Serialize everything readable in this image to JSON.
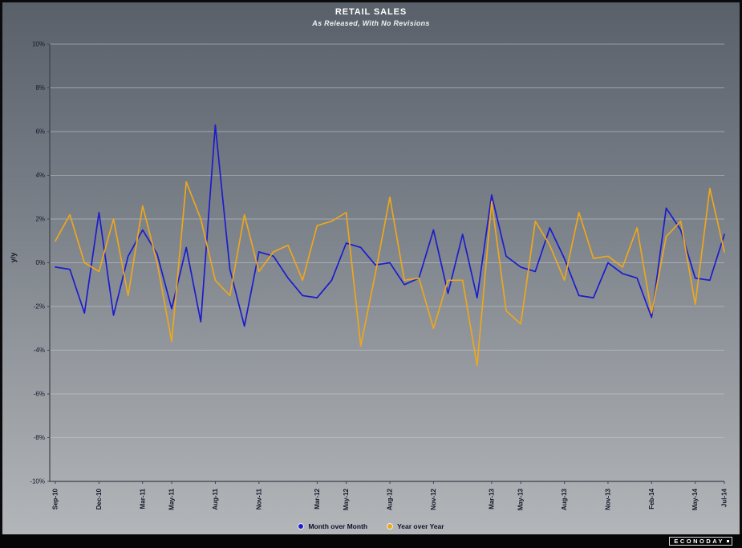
{
  "header": {
    "title": "RETAIL SALES",
    "subtitle": "As Released, With No Revisions"
  },
  "branding": {
    "logo_text": "ECONODAY"
  },
  "chart_data": {
    "type": "line",
    "title": "RETAIL SALES",
    "subtitle": "As Released, With No Revisions",
    "ylabel": "y/y",
    "unit": "%",
    "ylim": [
      -10,
      10
    ],
    "y_tick_step": 2,
    "y_tick_labels": [
      "10%",
      "8%",
      "6%",
      "4%",
      "2%",
      "0%",
      "-2%",
      "-4%",
      "-6%",
      "-8%",
      "-10%"
    ],
    "n_points": 47,
    "x_ticks": [
      {
        "label": "Sep-10",
        "index": 0
      },
      {
        "label": "Dec-10",
        "index": 3
      },
      {
        "label": "Mar-11",
        "index": 6
      },
      {
        "label": "May-11",
        "index": 8
      },
      {
        "label": "Aug-11",
        "index": 11
      },
      {
        "label": "Nov-11",
        "index": 14
      },
      {
        "label": "Mar-12",
        "index": 18
      },
      {
        "label": "May-12",
        "index": 20
      },
      {
        "label": "Aug-12",
        "index": 23
      },
      {
        "label": "Nov-12",
        "index": 26
      },
      {
        "label": "Mar-13",
        "index": 30
      },
      {
        "label": "May-13",
        "index": 32
      },
      {
        "label": "Aug-13",
        "index": 35
      },
      {
        "label": "Nov-13",
        "index": 38
      },
      {
        "label": "Feb-14",
        "index": 41
      },
      {
        "label": "May-14",
        "index": 44
      },
      {
        "label": "Jul-14",
        "index": 46
      }
    ],
    "grid": true,
    "legend_position": "bottom",
    "colors": {
      "grid": "#c9ccd0",
      "axis": "#3c4148",
      "axis_text": "#16162c",
      "background_top": "#59606a",
      "background_bottom": "#b3b6b9"
    },
    "series": [
      {
        "name": "Month over Month",
        "color": "#1c1ccd",
        "values": [
          -0.2,
          -0.3,
          -2.3,
          2.3,
          -2.4,
          0.3,
          1.5,
          0.4,
          -2.1,
          0.7,
          -2.7,
          6.3,
          -0.3,
          -2.9,
          0.5,
          0.3,
          -0.7,
          -1.5,
          -1.6,
          -0.8,
          0.9,
          0.7,
          -0.1,
          0.0,
          -1.0,
          -0.7,
          1.5,
          -1.4,
          1.3,
          -1.6,
          3.1,
          0.3,
          -0.2,
          -0.4,
          1.6,
          0.2,
          -1.5,
          -1.6,
          0.0,
          -0.5,
          -0.7,
          -2.5,
          2.5,
          1.5,
          -0.7,
          -0.8,
          1.3
        ]
      },
      {
        "name": "Year over Year",
        "color": "#eda71b",
        "values": [
          1.0,
          2.2,
          0.0,
          -0.4,
          2.0,
          -1.5,
          2.6,
          0.0,
          -3.6,
          3.7,
          2.0,
          -0.8,
          -1.5,
          2.2,
          -0.4,
          0.5,
          0.8,
          -0.8,
          1.7,
          1.9,
          2.3,
          -3.8,
          -0.5,
          3.0,
          -0.8,
          -0.7,
          -3.0,
          -0.8,
          -0.8,
          -4.7,
          2.8,
          -2.2,
          -2.8,
          1.9,
          0.8,
          -0.8,
          2.3,
          0.2,
          0.3,
          -0.2,
          1.6,
          -2.3,
          1.2,
          1.9,
          -1.9,
          3.4,
          0.5
        ]
      }
    ]
  }
}
